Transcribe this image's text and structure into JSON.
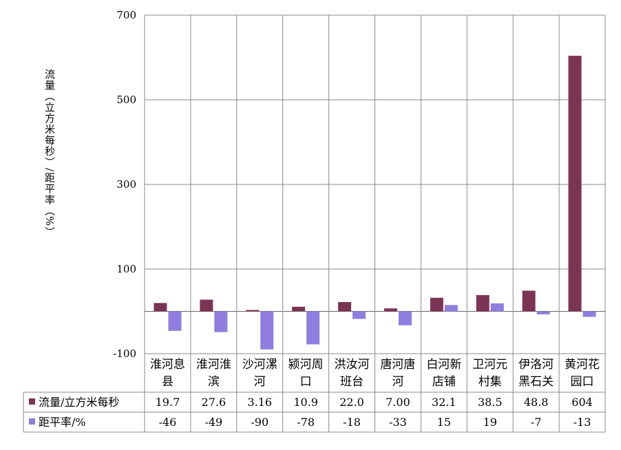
{
  "chart_data": {
    "type": "bar",
    "ylabel": "流量（立方米每秒）/距平率（%）",
    "ylim": [
      -100,
      700
    ],
    "yticks": [
      -100,
      100,
      300,
      500,
      700
    ],
    "grid": true,
    "legend_position": "data-table-left",
    "categories": [
      [
        "淮河息",
        "县"
      ],
      [
        "淮河淮",
        "滨"
      ],
      [
        "沙河漯",
        "河"
      ],
      [
        "颍河周",
        "口"
      ],
      [
        "洪汝河",
        "班台"
      ],
      [
        "唐河唐",
        "河"
      ],
      [
        "白河新",
        "店铺"
      ],
      [
        "卫河元",
        "村集"
      ],
      [
        "伊洛河",
        "黑石关"
      ],
      [
        "黄河花",
        "园口"
      ]
    ],
    "series": [
      {
        "name": "流量/立方米每秒",
        "color": "#7b3454",
        "values": [
          19.7,
          27.6,
          3.16,
          10.9,
          22.0,
          7.0,
          32.1,
          38.5,
          48.8,
          604
        ],
        "labels": [
          "19.7",
          "27.6",
          "3.16",
          "10.9",
          "22.0",
          "7.00",
          "32.1",
          "38.5",
          "48.8",
          "604"
        ]
      },
      {
        "name": "距平率/%",
        "color": "#8f7ee0",
        "values": [
          -46,
          -49,
          -90,
          -78,
          -18,
          -33,
          15,
          19,
          -7,
          -13
        ],
        "labels": [
          "-46",
          "-49",
          "-90",
          "-78",
          "-18",
          "-33",
          "15",
          "19",
          "-7",
          "-13"
        ]
      }
    ]
  }
}
